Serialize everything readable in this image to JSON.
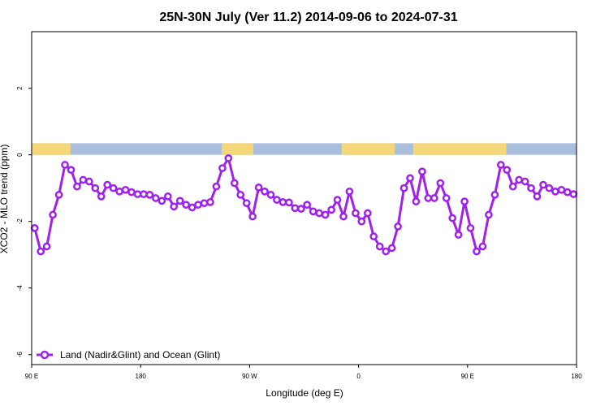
{
  "chart_data": {
    "type": "line",
    "title": "25N-30N July (Ver 11.2)   2014-09-06 to 2024-07-31",
    "xlabel": "Longitude (deg E)",
    "ylabel": "XCO2 - MLO trend (ppm)",
    "xlim": [
      0,
      450
    ],
    "ylim": [
      -6.3,
      3.7
    ],
    "x_tick_values": [
      0,
      90,
      180,
      270,
      360,
      450
    ],
    "x_tick_labels": [
      "90 E",
      "180",
      "90 W",
      "0",
      "90 E",
      "180"
    ],
    "y_tick_values": [
      -6,
      -4,
      -2,
      0,
      2
    ],
    "y_tick_labels": [
      "-6",
      "-4",
      "-2",
      "0",
      "2"
    ],
    "grid": false,
    "legend_position": "bottom-left",
    "land_ocean_strip": {
      "land_color": "#f5d77a",
      "ocean_color": "#a9bfdc",
      "land_spans": [
        [
          0,
          32
        ],
        [
          157,
          183
        ],
        [
          256,
          300
        ],
        [
          315,
          392
        ]
      ]
    },
    "series": [
      {
        "name": "Land (Nadir&Glint) and Ocean (Glint)",
        "color": "#a020f0",
        "x": [
          2.5,
          7.5,
          12.5,
          17.5,
          22.5,
          27.5,
          32.5,
          37.5,
          42.5,
          47.5,
          52.5,
          57.5,
          62.5,
          67.5,
          72.5,
          77.5,
          82.5,
          87.5,
          92.5,
          97.5,
          102.5,
          107.5,
          112.5,
          117.5,
          122.5,
          127.5,
          132.5,
          137.5,
          142.5,
          147.5,
          152.5,
          157.5,
          162.5,
          167.5,
          172.5,
          177.5,
          182.5,
          187.5,
          192.5,
          197.5,
          202.5,
          207.5,
          212.5,
          217.5,
          222.5,
          227.5,
          232.5,
          237.5,
          242.5,
          247.5,
          252.5,
          257.5,
          262.5,
          267.5,
          272.5,
          277.5,
          282.5,
          287.5,
          292.5,
          297.5,
          302.5,
          307.5,
          312.5,
          317.5,
          322.5,
          327.5,
          332.5,
          337.5,
          342.5,
          347.5,
          352.5,
          357.5,
          362.5,
          367.5,
          372.5,
          377.5,
          382.5,
          387.5,
          392.5,
          397.5,
          402.5,
          407.5,
          412.5,
          417.5,
          422.5,
          427.5,
          432.5,
          437.5,
          442.5,
          447.5
        ],
        "values": [
          -2.2,
          -2.9,
          -2.75,
          -1.8,
          -1.2,
          -0.3,
          -0.45,
          -0.95,
          -0.75,
          -0.8,
          -1.0,
          -1.25,
          -0.9,
          -1.0,
          -1.1,
          -1.05,
          -1.12,
          -1.18,
          -1.18,
          -1.2,
          -1.3,
          -1.38,
          -1.25,
          -1.55,
          -1.38,
          -1.5,
          -1.58,
          -1.5,
          -1.45,
          -1.42,
          -0.95,
          -0.4,
          -0.1,
          -0.85,
          -1.2,
          -1.45,
          -1.85,
          -0.98,
          -1.1,
          -1.2,
          -1.35,
          -1.42,
          -1.43,
          -1.6,
          -1.62,
          -1.5,
          -1.7,
          -1.75,
          -1.8,
          -1.65,
          -1.35,
          -1.85,
          -1.1,
          -1.75,
          -2.0,
          -1.75,
          -2.45,
          -2.75,
          -2.9,
          -2.8,
          -2.15,
          -1.0,
          -0.7,
          -1.4,
          -0.5,
          -1.3,
          -1.3,
          -0.85,
          -1.3,
          -1.9,
          -2.4,
          -1.4,
          -2.2,
          -2.9,
          -2.75,
          -1.8,
          -1.2,
          -0.3,
          -0.45,
          -0.95,
          -0.75,
          -0.8,
          -1.0,
          -1.25,
          -0.9,
          -1.0,
          -1.1,
          -1.05,
          -1.12,
          -1.18
        ]
      }
    ]
  }
}
